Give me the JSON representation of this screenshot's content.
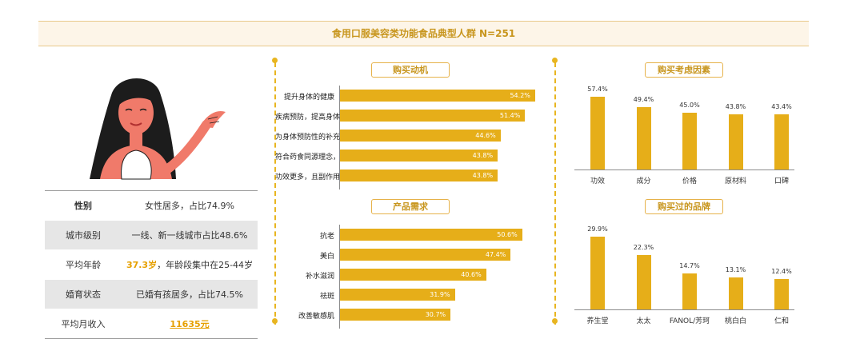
{
  "page_title": "食用口服美容类功能食品典型人群 N=251",
  "profile": [
    {
      "key": "性别",
      "value": "女性居多，占比74.9%"
    },
    {
      "key": "城市级别",
      "value": "一线、新一线城市占比48.6%"
    },
    {
      "key": "平均年龄",
      "highlight": "37.3岁",
      "value": "，年龄段集中在25-44岁"
    },
    {
      "key": "婚育状态",
      "value": "已婚有孩居多，占比74.5%"
    },
    {
      "key": "平均月收入",
      "link": "11635元"
    }
  ],
  "colors": {
    "bar": "#e6ae19",
    "accent": "#c8961e"
  },
  "chart_data": [
    {
      "type": "bar",
      "orientation": "horizontal",
      "title": "购买动机",
      "unit": "%",
      "categories": [
        "提升身体的健康",
        "疾病预防，提高身体抵抗力",
        "为身体预防性的补充微量/营养元素等",
        "符合药食同源理念，更好调理身体",
        "功效更多，且副作用较少"
      ],
      "values": [
        54.2,
        51.4,
        44.6,
        43.8,
        43.8
      ],
      "labels": [
        "54.2%",
        "51.4%",
        "44.6%",
        "43.8%",
        "43.8%"
      ]
    },
    {
      "type": "bar",
      "orientation": "horizontal",
      "title": "产品需求",
      "unit": "%",
      "categories": [
        "抗老",
        "美白",
        "补水滋润",
        "祛斑",
        "改善敏感肌"
      ],
      "values": [
        50.6,
        47.4,
        40.6,
        31.9,
        30.7
      ],
      "labels": [
        "50.6%",
        "47.4%",
        "40.6%",
        "31.9%",
        "30.7%"
      ]
    },
    {
      "type": "bar",
      "orientation": "vertical",
      "title": "购买考虑因素",
      "unit": "%",
      "categories": [
        "功效",
        "成分",
        "价格",
        "原材料",
        "口碑"
      ],
      "values": [
        57.4,
        49.4,
        45.0,
        43.8,
        43.4
      ],
      "labels": [
        "57.4%",
        "49.4%",
        "45.0%",
        "43.8%",
        "43.4%"
      ]
    },
    {
      "type": "bar",
      "orientation": "vertical",
      "title": "购买过的品牌",
      "unit": "%",
      "categories": [
        "养生堂",
        "太太",
        "FANOL/芳珂",
        "桃白白",
        "仁和"
      ],
      "values": [
        29.9,
        22.3,
        14.7,
        13.1,
        12.4
      ],
      "labels": [
        "29.9%",
        "22.3%",
        "14.7%",
        "13.1%",
        "12.4%"
      ]
    }
  ]
}
